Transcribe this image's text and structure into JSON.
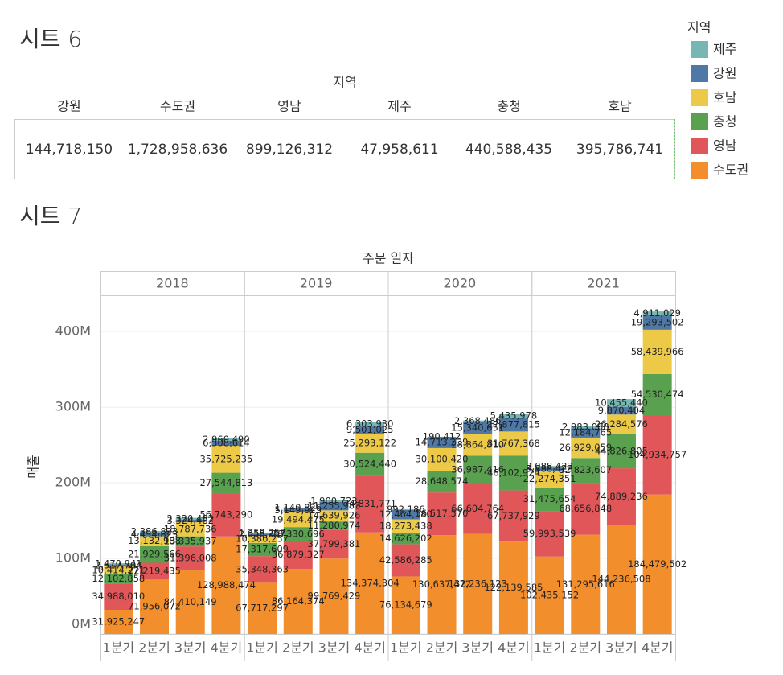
{
  "sheet6": {
    "title": "시트 6",
    "header": "지역",
    "columns": [
      "강원",
      "수도권",
      "영남",
      "제주",
      "충청",
      "호남"
    ],
    "values": [
      "144,718,150",
      "1,728,958,636",
      "899,126,312",
      "47,958,611",
      "440,588,435",
      "395,786,741"
    ]
  },
  "chart_data": {
    "type": "bar",
    "stacked": true,
    "title": "시트 7",
    "facet_title": "주문 일자",
    "y_label": "매출",
    "legend_title": "지역",
    "years": [
      "2018",
      "2019",
      "2020",
      "2021"
    ],
    "quarters": [
      "1분기",
      "2분기",
      "3분기",
      "4분기"
    ],
    "ylim": [
      0,
      448000000
    ],
    "yticks": [
      {
        "value": 0,
        "label": "0M"
      },
      {
        "value": 100000000,
        "label": "100M"
      },
      {
        "value": 200000000,
        "label": "200M"
      },
      {
        "value": 300000000,
        "label": "300M"
      },
      {
        "value": 400000000,
        "label": "400M"
      }
    ],
    "grid": true,
    "series": [
      {
        "name": "수도권",
        "color": "#f28e2b",
        "values": [
          31925247,
          71956072,
          84410149,
          128988474,
          67717297,
          86164374,
          99769429,
          134374304,
          76134679,
          130637472,
          132236123,
          122139585,
          102435152,
          131295616,
          144236508,
          184479502
        ],
        "value_labels": [
          "31,925,247",
          "71,956,072",
          "84,410,149",
          "128,988,474",
          "67,717,297",
          "86,164,374",
          "99,769,429",
          "134,374,304",
          "76,134,679",
          "130,637,472",
          "132,236,123",
          "122,139,585",
          "102,435,152",
          "131,295,616",
          "144,236,508",
          "184,479,502"
        ]
      },
      {
        "name": "영남",
        "color": "#e15759",
        "values": [
          34988010,
          22219435,
          31396008,
          56743290,
          35348363,
          36879327,
          37799381,
          74831771,
          42586285,
          56517570,
          66604764,
          67737929,
          59993539,
          68656848,
          74889236,
          104934757
        ],
        "value_labels": [
          "34,988,010",
          "22,219,435",
          "31,396,008",
          "56,743,290",
          "35,348,363",
          "36,879,327",
          "37,799,381",
          "74,831,771",
          "42,586,285",
          "56,517,570",
          "66,604,764",
          "67,737,929",
          "59,993,539",
          "68,656,848",
          "74,889,236",
          "104,934,757"
        ]
      },
      {
        "name": "충청",
        "color": "#59a14f",
        "values": [
          12102858,
          21929566,
          13335937,
          27544813,
          17317609,
          18330696,
          11280974,
          30524440,
          14626202,
          28648574,
          36987416,
          46102924,
          31475654,
          32823607,
          44826805,
          54530474
        ],
        "value_labels": [
          "12,102,858",
          "21,929,566",
          "13,335,937",
          "27,544,813",
          "17,317,609",
          "18,330,696",
          "11,280,974",
          "30,524,440",
          "14,626,202",
          "28,648,574",
          "36,987,416",
          "46,102,924",
          "31,475,654",
          "32,823,607",
          "44,826,805",
          "54,530,474"
        ]
      },
      {
        "name": "호남",
        "color": "#edc948",
        "values": [
          10414271,
          13132988,
          18787736,
          35725235,
          10386257,
          19494475,
          14639926,
          25293122,
          18273438,
          30100420,
          28864810,
          31767368,
          22274351,
          26929059,
          26284576,
          58439966
        ],
        "value_labels": [
          "10,414,271",
          "13,132,988",
          "18,787,736",
          "35,725,235",
          "10,386,257",
          "19,494,475",
          "14,639,926",
          "25,293,122",
          "18,273,438",
          "30,100,420",
          "28,864,810",
          "31,767,368",
          "22,274,351",
          "26,929,059",
          "26,284,576",
          "58,439,966"
        ]
      },
      {
        "name": "강원",
        "color": "#4e79a7",
        "values": [
          2517704,
          4454823,
          3324482,
          6508614,
          2058257,
          5149025,
          11255983,
          9501025,
          12464180,
          14713239,
          15340651,
          17877815,
          3888423,
          12184765,
          9870404,
          19293502
        ],
        "value_labels": [
          "2,517,704",
          "4,454,823",
          "3,324,482",
          "6,508,614",
          "2,058,257",
          "5,149,025",
          "11,255,983",
          "9,501,025",
          "12,464,180",
          "14,713,239",
          "15,340,651",
          "17,877,815",
          "3,888,423",
          "12,184,765",
          "9,870,404",
          "19,293,502"
        ]
      },
      {
        "name": "제주",
        "color": "#76b7b2",
        "values": [
          1470941,
          2386823,
          2320482,
          2960490,
          1358257,
          1140826,
          1900723,
          6303930,
          992186,
          190412,
          2368486,
          5435978,
          2088423,
          2983068,
          10455440,
          4911029
        ],
        "value_labels": [
          "1,470,941",
          "2,386,823",
          "2,320,482",
          "2,960,490",
          "1,358,257",
          "1,140,826",
          "1,900,723",
          "6,303,930",
          "992,186",
          "190,412",
          "2,368,486",
          "5,435,978",
          "2,088,423",
          "2,983,068",
          "10,455,440",
          "4,911,029"
        ]
      }
    ]
  }
}
